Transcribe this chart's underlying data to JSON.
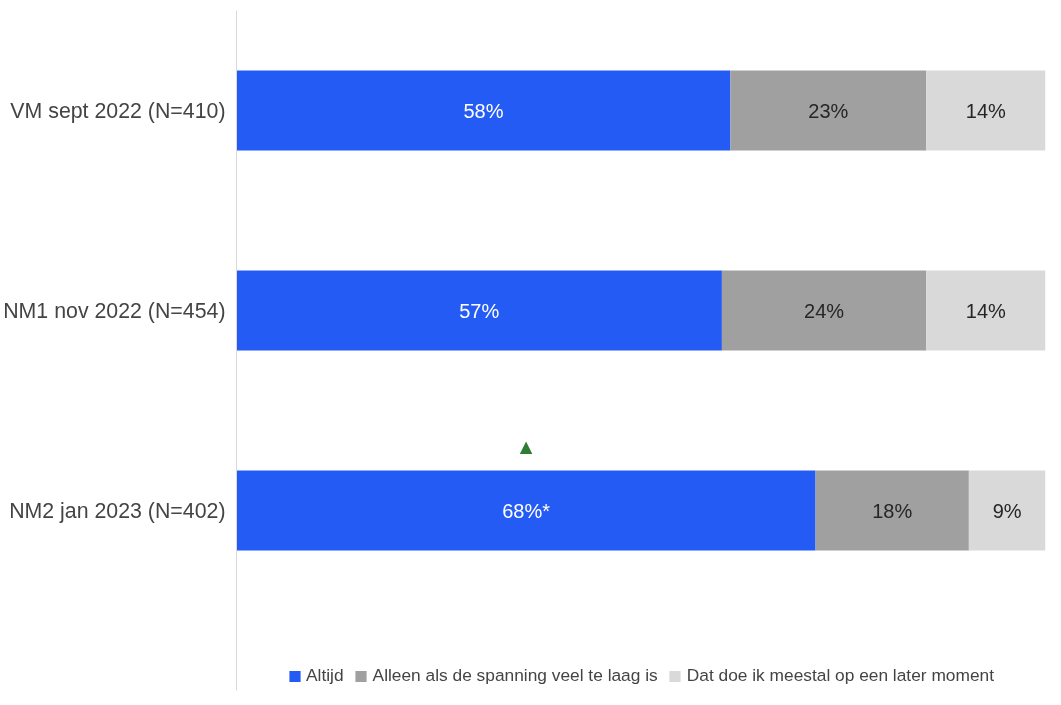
{
  "chart_data": {
    "type": "bar",
    "orientation": "horizontal",
    "stacked": true,
    "categories": [
      "VM sept 2022 (N=410)",
      "NM1 nov 2022 (N=454)",
      "NM2 jan 2023 (N=402)"
    ],
    "series": [
      {
        "name": "Altijd",
        "color": "#245bf5",
        "values": [
          58,
          57,
          68
        ],
        "value_labels": [
          "58%",
          "57%",
          "68%*"
        ]
      },
      {
        "name": "Alleen als de spanning veel te laag is",
        "color": "#a0a0a0",
        "values": [
          23,
          24,
          18
        ],
        "value_labels": [
          "23%",
          "24%",
          "18%"
        ]
      },
      {
        "name": "Dat doe ik meestal op een later moment",
        "color": "#d9d9d9",
        "values": [
          14,
          14,
          9
        ],
        "value_labels": [
          "14%",
          "14%",
          "9%"
        ]
      }
    ],
    "annotations": [
      "▲"
    ],
    "tick_labels": "y",
    "grid": false,
    "legend": "bottom"
  }
}
